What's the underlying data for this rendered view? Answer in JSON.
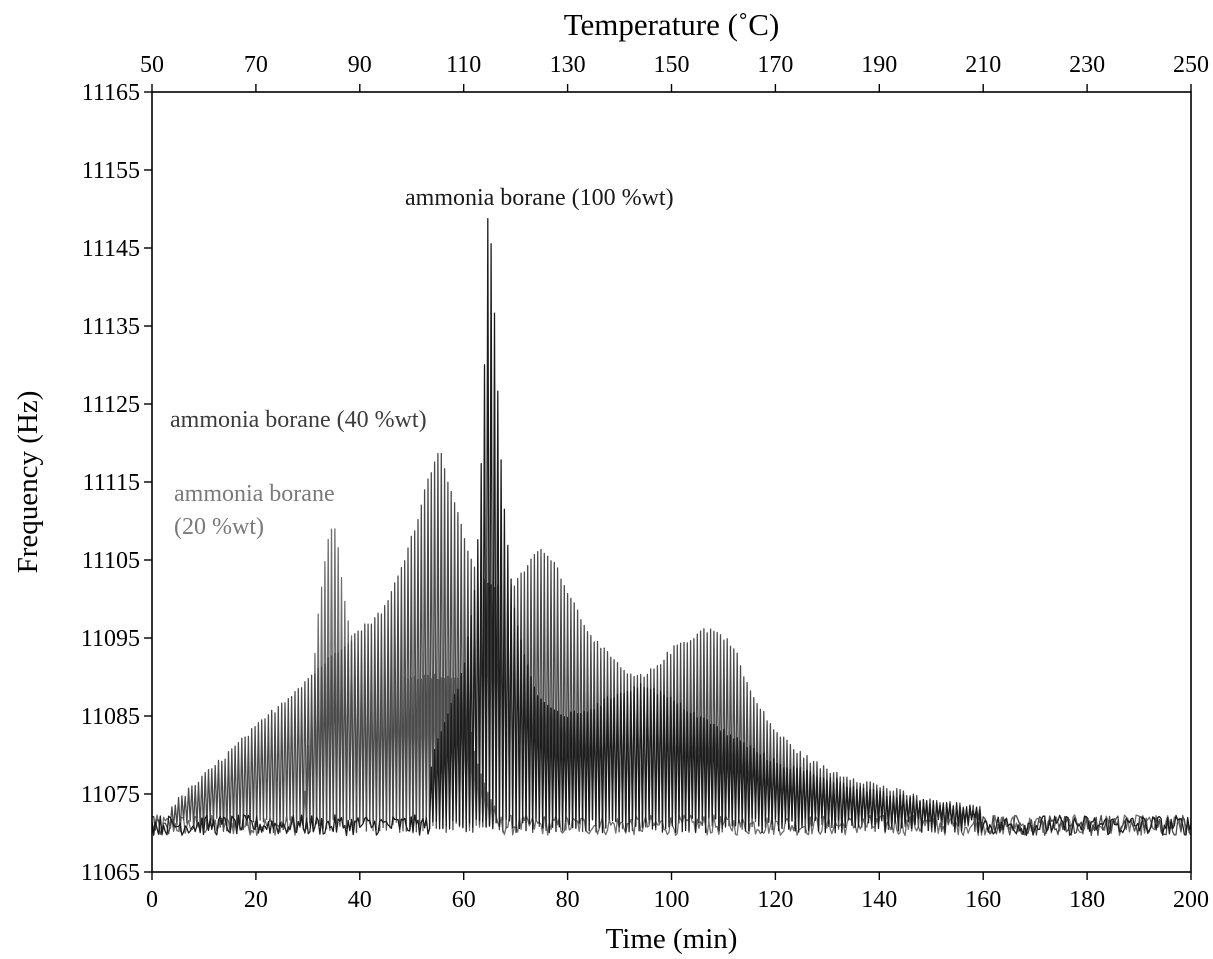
{
  "chart_data": {
    "type": "line",
    "xlabel": "Time (min)",
    "x2label": "Temperature (˚C)",
    "ylabel": "Frequency (Hz)",
    "xlim": [
      0,
      200
    ],
    "x2lim": [
      50,
      250
    ],
    "ylim": [
      11065,
      11165
    ],
    "xticks": [
      0,
      20,
      40,
      60,
      80,
      100,
      120,
      140,
      160,
      180,
      200
    ],
    "x2ticks": [
      50,
      70,
      90,
      110,
      130,
      150,
      170,
      190,
      210,
      230,
      250
    ],
    "yticks": [
      11065,
      11075,
      11085,
      11095,
      11105,
      11115,
      11125,
      11135,
      11145,
      11155,
      11165
    ],
    "grid": false,
    "annotations": {
      "ab20_line1": "ammonia borane",
      "ab20_line2": "(20 %wt)",
      "ab40": "ammonia borane (40 %wt)",
      "ab100": "ammonia borane (100 %wt)"
    },
    "series": [
      {
        "key": "ab20",
        "color": "#6e6e6e",
        "baseline": 11071,
        "noise": 1.2,
        "x": [
          0,
          29,
          30,
          31,
          32,
          33,
          34,
          35,
          36,
          37,
          38,
          40,
          42,
          45,
          50,
          55,
          60,
          61,
          63,
          66,
          200
        ],
        "y": [
          11071,
          11072,
          11080,
          11090,
          11098,
          11104,
          11108,
          11110,
          11106,
          11100,
          11096,
          11092,
          11090,
          11090,
          11090,
          11090,
          11090,
          11084,
          11078,
          11073,
          11071
        ]
      },
      {
        "key": "ab40",
        "color": "#4a4a4a",
        "baseline": 11071,
        "noise": 1.2,
        "x": [
          0,
          40,
          42,
          45,
          48,
          51,
          53,
          54,
          55,
          56,
          57,
          58,
          60,
          62,
          65,
          68,
          70,
          72,
          74,
          76,
          78,
          80,
          83,
          86,
          89,
          92,
          95,
          98,
          101,
          104,
          106,
          108,
          110,
          112,
          114,
          116,
          118,
          120,
          125,
          130,
          140,
          150,
          160,
          170,
          180,
          190,
          200
        ],
        "y": [
          11071,
          11096,
          11097,
          11099,
          11104,
          11110,
          11115,
          11117,
          11119,
          11118,
          11115,
          11113,
          11108,
          11104,
          11102,
          11101,
          11102,
          11104,
          11106,
          11106,
          11104,
          11101,
          11097,
          11094,
          11092,
          11090,
          11090,
          11092,
          11094,
          11095,
          11096,
          11096,
          11095,
          11094,
          11090,
          11087,
          11085,
          11083,
          11080,
          11078,
          11076,
          11074,
          11073,
          11072,
          11072,
          11071,
          11071
        ]
      },
      {
        "key": "ab100",
        "color": "#1c1c1c",
        "baseline": 11071,
        "noise": 1.2,
        "x": [
          0,
          53,
          54,
          56,
          58,
          60,
          61,
          62,
          63,
          64,
          64.6,
          65,
          65.5,
          66,
          67,
          68,
          69,
          70,
          72,
          74,
          76,
          80,
          85,
          90,
          95,
          100,
          110,
          120,
          130,
          140,
          150,
          160,
          170,
          180,
          190,
          200
        ],
        "y": [
          11071,
          11072,
          11080,
          11084,
          11087,
          11091,
          11096,
          11100,
          11110,
          11130,
          11149,
          11146,
          11145,
          11135,
          11120,
          11110,
          11103,
          11098,
          11092,
          11088,
          11086,
          11085,
          11086,
          11088,
          11089,
          11087,
          11083,
          11079,
          11077,
          11075,
          11074,
          11073,
          11072,
          11072,
          11071,
          11071
        ]
      }
    ]
  }
}
